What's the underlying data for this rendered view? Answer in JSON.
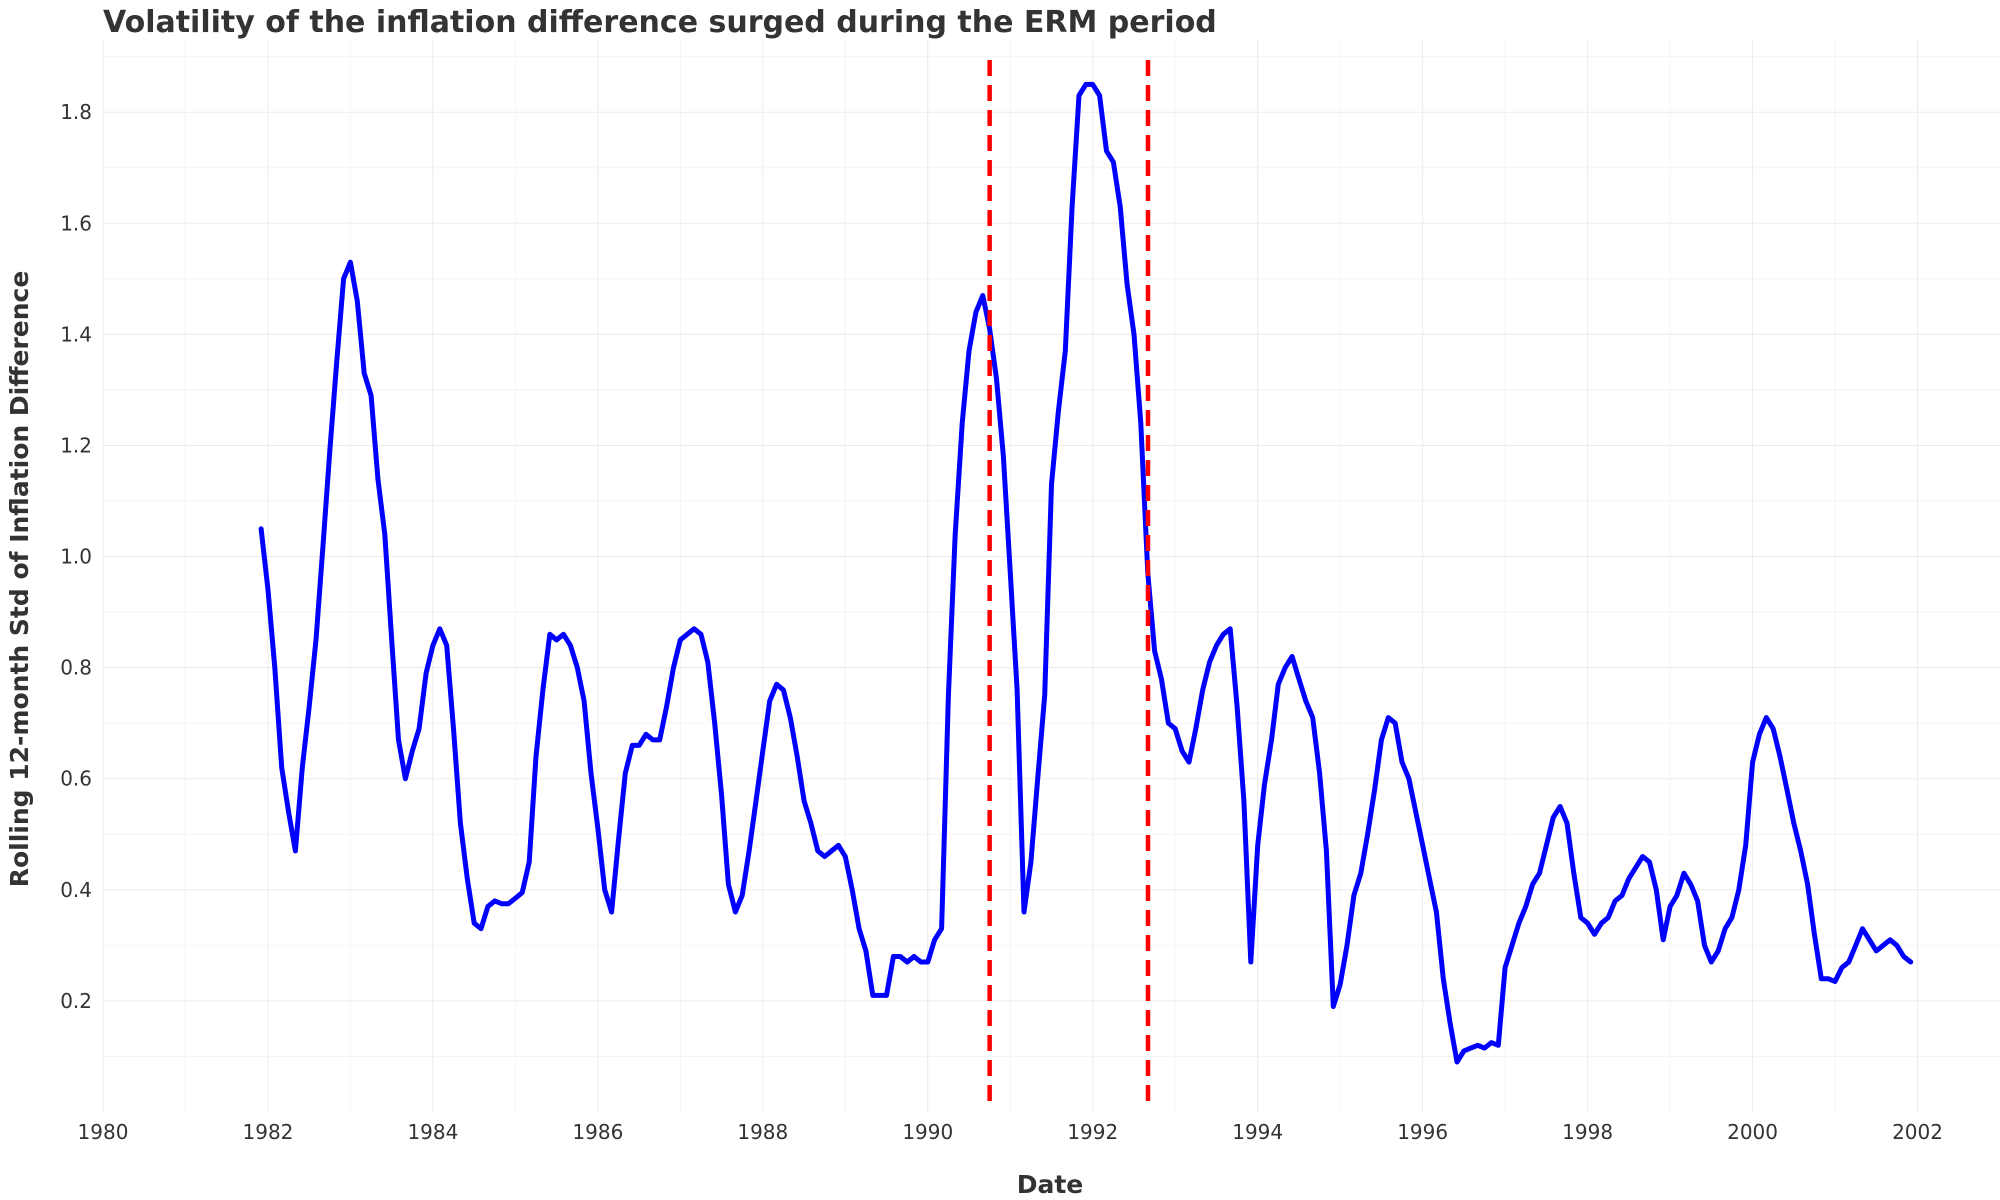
{
  "chart_data": {
    "type": "line",
    "title": "Volatility of the inflation difference surged during the ERM period",
    "xlabel": "Date",
    "ylabel": "Rolling 12-month Std of Inflation Difference",
    "xlim": [
      1980,
      2003
    ],
    "ylim": [
      0.0,
      1.93
    ],
    "x_ticks": [
      "1980",
      "1982",
      "1984",
      "1986",
      "1988",
      "1990",
      "1992",
      "1994",
      "1996",
      "1998",
      "2000",
      "2002"
    ],
    "y_ticks": [
      "0.2",
      "0.4",
      "0.6",
      "0.8",
      "1.0",
      "1.2",
      "1.4",
      "1.6",
      "1.8"
    ],
    "grid": true,
    "line_color": "#0000ff",
    "vline_color": "#ff0000",
    "vlines": [
      1990.75,
      1992.67
    ],
    "x": [
      1981.917,
      1982.0,
      1982.083,
      1982.167,
      1982.25,
      1982.333,
      1982.417,
      1982.5,
      1982.583,
      1982.667,
      1982.75,
      1982.833,
      1982.917,
      1983.0,
      1983.083,
      1983.167,
      1983.25,
      1983.333,
      1983.417,
      1983.5,
      1983.583,
      1983.667,
      1983.75,
      1983.833,
      1983.917,
      1984.0,
      1984.083,
      1984.167,
      1984.25,
      1984.333,
      1984.417,
      1984.5,
      1984.583,
      1984.667,
      1984.75,
      1984.833,
      1984.917,
      1985.0,
      1985.083,
      1985.167,
      1985.25,
      1985.333,
      1985.417,
      1985.5,
      1985.583,
      1985.667,
      1985.75,
      1985.833,
      1985.917,
      1986.0,
      1986.083,
      1986.167,
      1986.25,
      1986.333,
      1986.417,
      1986.5,
      1986.583,
      1986.667,
      1986.75,
      1986.833,
      1986.917,
      1987.0,
      1987.083,
      1987.167,
      1987.25,
      1987.333,
      1987.417,
      1987.5,
      1987.583,
      1987.667,
      1987.75,
      1987.833,
      1987.917,
      1988.0,
      1988.083,
      1988.167,
      1988.25,
      1988.333,
      1988.417,
      1988.5,
      1988.583,
      1988.667,
      1988.75,
      1988.833,
      1988.917,
      1989.0,
      1989.083,
      1989.167,
      1989.25,
      1989.333,
      1989.417,
      1989.5,
      1989.583,
      1989.667,
      1989.75,
      1989.833,
      1989.917,
      1990.0,
      1990.083,
      1990.167,
      1990.25,
      1990.333,
      1990.417,
      1990.5,
      1990.583,
      1990.667,
      1990.75,
      1990.833,
      1990.917,
      1991.0,
      1991.083,
      1991.167,
      1991.25,
      1991.333,
      1991.417,
      1991.5,
      1991.583,
      1991.667,
      1991.75,
      1991.833,
      1991.917,
      1992.0,
      1992.083,
      1992.167,
      1992.25,
      1992.333,
      1992.417,
      1992.5,
      1992.583,
      1992.667,
      1992.75,
      1992.833,
      1992.917,
      1993.0,
      1993.083,
      1993.167,
      1993.25,
      1993.333,
      1993.417,
      1993.5,
      1993.583,
      1993.667,
      1993.75,
      1993.833,
      1993.917,
      1994.0,
      1994.083,
      1994.167,
      1994.25,
      1994.333,
      1994.417,
      1994.5,
      1994.583,
      1994.667,
      1994.75,
      1994.833,
      1994.917,
      1995.0,
      1995.083,
      1995.167,
      1995.25,
      1995.333,
      1995.417,
      1995.5,
      1995.583,
      1995.667,
      1995.75,
      1995.833,
      1995.917,
      1996.0,
      1996.083,
      1996.167,
      1996.25,
      1996.333,
      1996.417,
      1996.5,
      1996.583,
      1996.667,
      1996.75,
      1996.833,
      1996.917,
      1997.0,
      1997.083,
      1997.167,
      1997.25,
      1997.333,
      1997.417,
      1997.5,
      1997.583,
      1997.667,
      1997.75,
      1997.833,
      1997.917,
      1998.0,
      1998.083,
      1998.167,
      1998.25,
      1998.333,
      1998.417,
      1998.5,
      1998.583,
      1998.667,
      1998.75,
      1998.833,
      1998.917,
      1999.0,
      1999.083,
      1999.167,
      1999.25,
      1999.333,
      1999.417,
      1999.5,
      1999.583,
      1999.667,
      1999.75,
      1999.833,
      1999.917,
      2000.0,
      2000.083,
      2000.167,
      2000.25,
      2000.333,
      2000.417,
      2000.5,
      2000.583,
      2000.667,
      2000.75,
      2000.833,
      2000.917,
      2001.0,
      2001.083,
      2001.167,
      2001.25,
      2001.333,
      2001.417,
      2001.5,
      2001.583,
      2001.667,
      2001.75,
      2001.833,
      2001.917
    ],
    "series": [
      {
        "values": [
          1.05,
          0.94,
          0.8,
          0.62,
          0.54,
          0.47,
          0.62,
          0.73,
          0.85,
          1.02,
          1.19,
          1.35,
          1.5,
          1.53,
          1.46,
          1.33,
          1.29,
          1.14,
          1.04,
          0.85,
          0.67,
          0.6,
          0.65,
          0.69,
          0.79,
          0.84,
          0.87,
          0.84,
          0.69,
          0.52,
          0.42,
          0.34,
          0.33,
          0.37,
          0.38,
          0.375,
          0.375,
          0.385,
          0.395,
          0.45,
          0.64,
          0.76,
          0.86,
          0.85,
          0.86,
          0.84,
          0.8,
          0.74,
          0.61,
          0.51,
          0.4,
          0.36,
          0.49,
          0.61,
          0.66,
          0.66,
          0.68,
          0.67,
          0.67,
          0.73,
          0.8,
          0.85,
          0.86,
          0.87,
          0.86,
          0.81,
          0.7,
          0.57,
          0.41,
          0.36,
          0.39,
          0.47,
          0.56,
          0.65,
          0.74,
          0.77,
          0.76,
          0.71,
          0.64,
          0.56,
          0.52,
          0.47,
          0.46,
          0.47,
          0.48,
          0.46,
          0.4,
          0.33,
          0.29,
          0.21,
          0.21,
          0.21,
          0.28,
          0.28,
          0.27,
          0.28,
          0.27,
          0.27,
          0.31,
          0.33,
          0.75,
          1.04,
          1.24,
          1.37,
          1.44,
          1.47,
          1.41,
          1.32,
          1.18,
          0.97,
          0.76,
          0.36,
          0.45,
          0.6,
          0.75,
          1.13,
          1.26,
          1.37,
          1.63,
          1.83,
          1.85,
          1.85,
          1.83,
          1.73,
          1.71,
          1.63,
          1.49,
          1.4,
          1.24,
          0.97,
          0.83,
          0.78,
          0.7,
          0.69,
          0.65,
          0.63,
          0.69,
          0.76,
          0.81,
          0.84,
          0.86,
          0.87,
          0.73,
          0.56,
          0.27,
          0.48,
          0.59,
          0.67,
          0.77,
          0.8,
          0.82,
          0.78,
          0.74,
          0.71,
          0.61,
          0.47,
          0.19,
          0.23,
          0.3,
          0.39,
          0.43,
          0.5,
          0.58,
          0.67,
          0.71,
          0.7,
          0.63,
          0.6,
          0.54,
          0.48,
          0.42,
          0.36,
          0.24,
          0.16,
          0.09,
          0.11,
          0.115,
          0.12,
          0.115,
          0.125,
          0.12,
          0.26,
          0.3,
          0.34,
          0.37,
          0.41,
          0.43,
          0.48,
          0.53,
          0.55,
          0.52,
          0.43,
          0.35,
          0.34,
          0.32,
          0.34,
          0.35,
          0.38,
          0.39,
          0.42,
          0.44,
          0.46,
          0.45,
          0.4,
          0.31,
          0.37,
          0.39,
          0.43,
          0.41,
          0.38,
          0.3,
          0.27,
          0.29,
          0.33,
          0.35,
          0.4,
          0.48,
          0.63,
          0.68,
          0.71,
          0.69,
          0.64,
          0.58,
          0.52,
          0.47,
          0.41,
          0.32,
          0.24,
          0.24,
          0.235,
          0.26,
          0.27,
          0.3,
          0.33,
          0.31,
          0.29,
          0.3,
          0.31,
          0.3,
          0.28,
          0.27
        ]
      }
    ]
  }
}
